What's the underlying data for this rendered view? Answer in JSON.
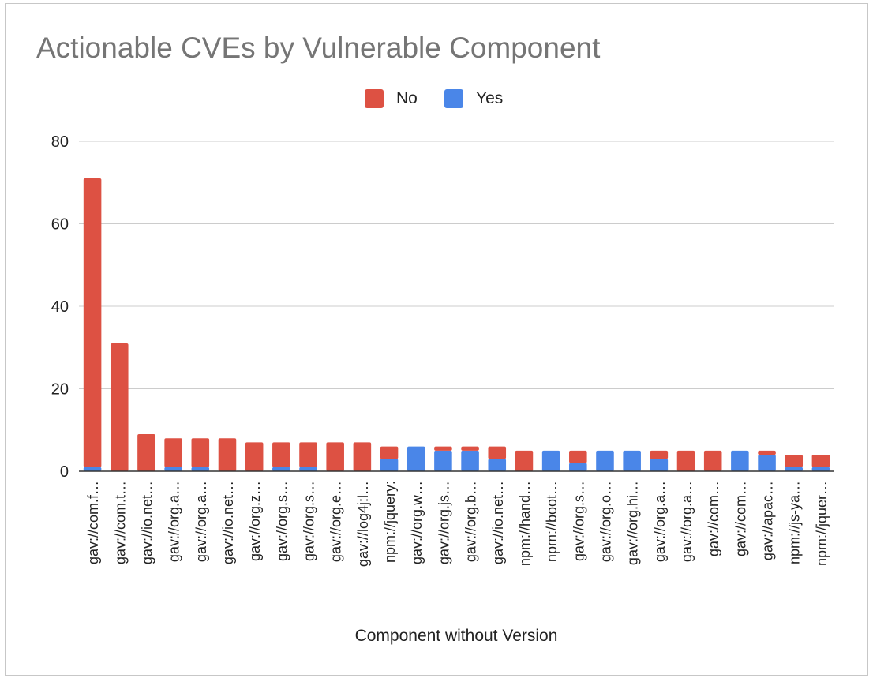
{
  "chart_data": {
    "type": "bar",
    "stacked": true,
    "title": "Actionable CVEs by Vulnerable Component",
    "xlabel": "Component without Version",
    "ylabel": "",
    "ylim": [
      0,
      80
    ],
    "yticks": [
      "0",
      "20",
      "40",
      "60",
      "80"
    ],
    "grid": true,
    "legend_position": "top",
    "categories": [
      "gav://com.f…",
      "gav://com.t…",
      "gav://io.net…",
      "gav://org.a…",
      "gav://org.a…",
      "gav://io.net…",
      "gav://org.z…",
      "gav://org.s…",
      "gav://org.s…",
      "gav://org.e…",
      "gav://log4j:l…",
      "npm://jquery:",
      "gav://org.w…",
      "gav://org.js…",
      "gav://org.b…",
      "gav://io.net…",
      "npm://hand…",
      "npm://boot…",
      "gav://org.s…",
      "gav://org.o…",
      "gav://org.hi…",
      "gav://org.a…",
      "gav://org.a…",
      "gav://com…",
      "gav://com…",
      "gav://apac…",
      "npm://js-ya…",
      "npm://jquer…"
    ],
    "series": [
      {
        "name": "Yes",
        "color": "#4a86e8",
        "values": [
          1,
          0,
          0,
          1,
          1,
          0,
          0,
          1,
          1,
          0,
          0,
          3,
          6,
          5,
          5,
          3,
          0,
          5,
          2,
          5,
          5,
          3,
          0,
          0,
          5,
          4,
          1,
          1
        ]
      },
      {
        "name": "No",
        "color": "#dd5143",
        "values": [
          70,
          31,
          9,
          7,
          7,
          8,
          7,
          6,
          6,
          7,
          7,
          3,
          0,
          1,
          1,
          3,
          5,
          0,
          3,
          0,
          0,
          2,
          5,
          5,
          0,
          1,
          3,
          3
        ]
      }
    ],
    "legend": [
      {
        "name": "No",
        "color": "#dd5143"
      },
      {
        "name": "Yes",
        "color": "#4a86e8"
      }
    ]
  }
}
